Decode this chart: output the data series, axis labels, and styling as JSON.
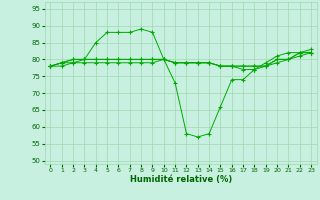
{
  "xlabel": "Humidité relative (%)",
  "bg_color": "#c8f0e0",
  "grid_color": "#a0d8b0",
  "line_color": "#00aa00",
  "xlim": [
    -0.5,
    23.5
  ],
  "ylim": [
    49,
    97
  ],
  "yticks": [
    50,
    55,
    60,
    65,
    70,
    75,
    80,
    85,
    90,
    95
  ],
  "xticks": [
    0,
    1,
    2,
    3,
    4,
    5,
    6,
    7,
    8,
    9,
    10,
    11,
    12,
    13,
    14,
    15,
    16,
    17,
    18,
    19,
    20,
    21,
    22,
    23
  ],
  "series": [
    [
      78,
      79,
      79,
      80,
      85,
      88,
      88,
      88,
      89,
      88,
      80,
      73,
      58,
      57,
      58,
      66,
      74,
      74,
      77,
      79,
      81,
      82,
      82,
      83
    ],
    [
      78,
      79,
      80,
      80,
      80,
      80,
      80,
      80,
      80,
      80,
      80,
      79,
      79,
      79,
      79,
      78,
      78,
      78,
      78,
      78,
      80,
      80,
      82,
      82
    ],
    [
      78,
      79,
      80,
      80,
      80,
      80,
      80,
      80,
      80,
      80,
      80,
      79,
      79,
      79,
      79,
      78,
      78,
      78,
      78,
      78,
      80,
      80,
      82,
      82
    ],
    [
      78,
      78,
      79,
      79,
      79,
      79,
      79,
      79,
      79,
      79,
      80,
      79,
      79,
      79,
      79,
      78,
      78,
      77,
      77,
      78,
      79,
      80,
      81,
      82
    ]
  ]
}
